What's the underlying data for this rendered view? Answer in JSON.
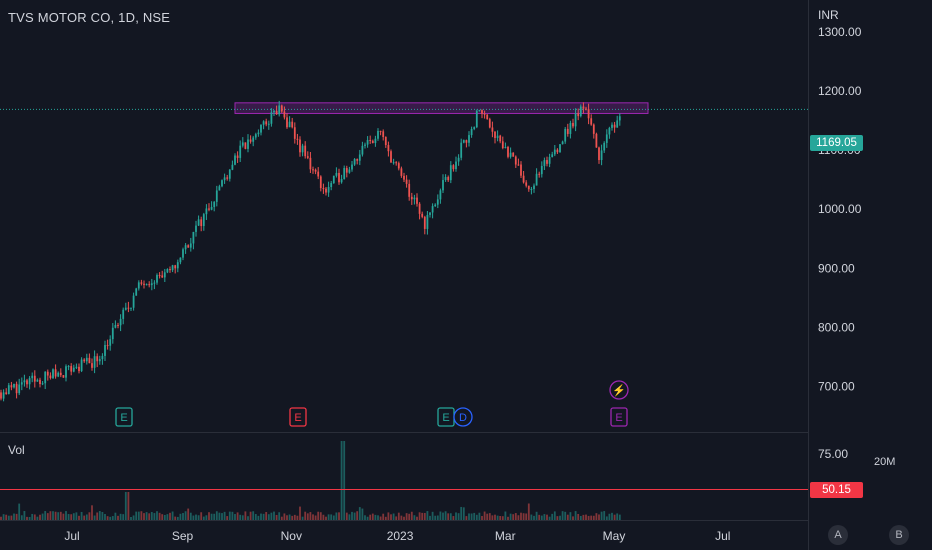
{
  "header": {
    "title": "TVS MOTOR CO, 1D, NSE",
    "currency": "INR"
  },
  "price_axis": {
    "ticks": [
      "1300.00",
      "1200.00",
      "1100.00",
      "1000.00",
      "900.00",
      "800.00",
      "700.00"
    ]
  },
  "last_price": {
    "label": "1169.05",
    "value": 1169.05,
    "color": "#26a69a"
  },
  "resistance_zone": {
    "low": 1162,
    "high": 1180,
    "color": "#9c27b0"
  },
  "volume_pane": {
    "label": "Vol",
    "scale_label": "20M",
    "tick": "75.00",
    "ma_label": "50.15",
    "ma_color": "#f23645"
  },
  "time_axis": {
    "labels": [
      "Jul",
      "Sep",
      "Nov",
      "2023",
      "Mar",
      "May",
      "Jul"
    ]
  },
  "events": [
    {
      "label": "E",
      "color": "#26a69a"
    },
    {
      "label": "E",
      "color": "#f23645"
    },
    {
      "label": "E",
      "color": "#26a69a"
    },
    {
      "label": "D",
      "color": "#2962ff"
    },
    {
      "label": "E",
      "color": "#9c27b0"
    },
    {
      "label": "⚡",
      "color": "#9c27b0"
    }
  ],
  "buttons": {
    "auto": "A",
    "log": "B"
  },
  "chart_data": {
    "type": "candlestick",
    "title": "TVS MOTOR CO, 1D, NSE",
    "ylim": [
      623,
      1354
    ],
    "series": [
      {
        "date": "2022-06",
        "close": 690
      },
      {
        "date": "2022-07-15",
        "close": 745
      },
      {
        "date": "2022-08-10",
        "close": 880
      },
      {
        "date": "2022-08-25",
        "close": 890
      },
      {
        "date": "2022-09-15",
        "close": 1000
      },
      {
        "date": "2022-10-01",
        "close": 1090
      },
      {
        "date": "2022-10-25",
        "close": 1170
      },
      {
        "date": "2022-11-20",
        "close": 1030
      },
      {
        "date": "2022-12-20",
        "close": 1130
      },
      {
        "date": "2023-01-15",
        "close": 975
      },
      {
        "date": "2023-02-15",
        "close": 1170
      },
      {
        "date": "2023-03-15",
        "close": 1035
      },
      {
        "date": "2023-04-15",
        "close": 1180
      },
      {
        "date": "2023-04-22",
        "close": 1090
      },
      {
        "date": "2023-05-05",
        "close": 1169
      }
    ]
  }
}
